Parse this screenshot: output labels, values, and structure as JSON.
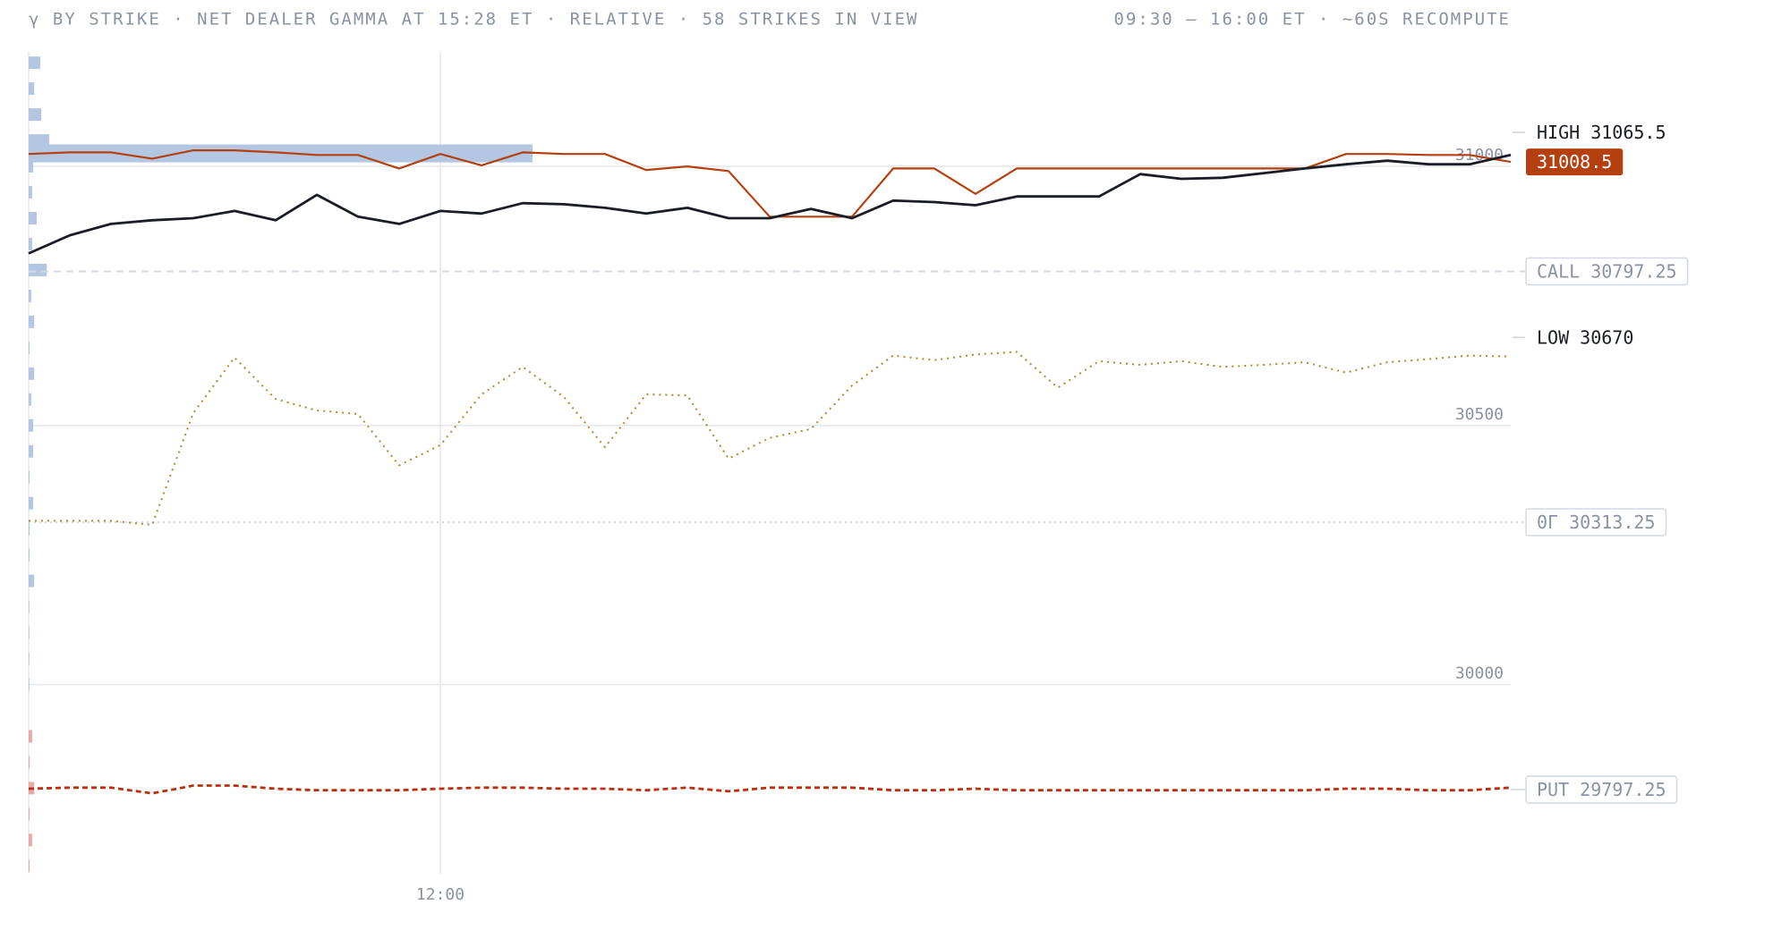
{
  "chart_data": {
    "type": "line",
    "title": "γ BY STRIKE · NET DEALER GAMMA AT 15:28 ET · RELATIVE · 58 STRIKES IN VIEW",
    "subtitle": "09:30 – 16:00 ET · ~60S RECOMPUTE",
    "x": [
      "10:40",
      "10:48",
      "10:56",
      "11:04",
      "11:12",
      "11:20",
      "11:28",
      "11:36",
      "11:44",
      "11:52",
      "12:00",
      "12:08",
      "12:16",
      "12:24",
      "12:32",
      "12:40",
      "12:48",
      "12:56",
      "13:04",
      "13:12",
      "13:20",
      "13:28",
      "13:36",
      "13:44",
      "13:52",
      "14:00",
      "14:08",
      "14:16",
      "14:24",
      "14:32",
      "14:40",
      "14:48",
      "14:56",
      "15:04",
      "15:12",
      "15:20",
      "15:28"
    ],
    "xlim": [
      "10:40",
      "15:28"
    ],
    "xticks": [
      "12:00"
    ],
    "ylim": [
      29635,
      31221
    ],
    "yticks": [
      30000,
      30500,
      31000
    ],
    "grid": true,
    "series": [
      {
        "color": "#b5400f",
        "style": "solid",
        "width": 2.2,
        "values": [
          31024,
          31027,
          31027,
          31015,
          31031,
          31031,
          31027,
          31022,
          31022,
          30996,
          31024,
          31002,
          31027,
          31024,
          31024,
          30993,
          31000,
          30991,
          30903,
          30903,
          30903,
          30996,
          30996,
          30947,
          30996,
          30996,
          30996,
          30996,
          30996,
          30996,
          30996,
          30996,
          31024,
          31024,
          31022,
          31022,
          31008.5
        ]
      },
      {
        "color": "#1a1d26",
        "style": "solid",
        "width": 2.8,
        "values": [
          30832,
          30867,
          30889,
          30896,
          30900,
          30914,
          30896,
          30945,
          30903,
          30889,
          30914,
          30909,
          30929,
          30927,
          30920,
          30909,
          30920,
          30900,
          30900,
          30918,
          30900,
          30934,
          30931,
          30925,
          30942,
          30942,
          30942,
          30985,
          30976,
          30978,
          30987,
          30996,
          31004,
          31011,
          31004,
          31004,
          31022
        ]
      },
      {
        "color": "#b8862a",
        "style": "dotted",
        "width": 2,
        "values": [
          30316,
          30316,
          30316,
          30308,
          30524,
          30631,
          30551,
          30529,
          30522,
          30423,
          30462,
          30560,
          30613,
          30555,
          30458,
          30560,
          30558,
          30436,
          30476,
          30493,
          30577,
          30635,
          30626,
          30637,
          30642,
          30573,
          30624,
          30617,
          30624,
          30613,
          30617,
          30622,
          30602,
          30622,
          30628,
          30635,
          30633
        ]
      },
      {
        "color": "#b8300f",
        "style": "dashed",
        "width": 2.8,
        "values": [
          29799,
          29801,
          29801,
          29790,
          29805,
          29805,
          29799,
          29796,
          29796,
          29796,
          29799,
          29801,
          29801,
          29799,
          29799,
          29796,
          29801,
          29794,
          29801,
          29801,
          29801,
          29796,
          29796,
          29799,
          29796,
          29796,
          29796,
          29796,
          29796,
          29796,
          29796,
          29796,
          29799,
          29799,
          29796,
          29796,
          29801
        ]
      }
    ],
    "gamma_bars": {
      "positive_color": "#b3c6e2",
      "negative_color": "#e8a9a9",
      "strikes": [
        31200,
        31150,
        31100,
        31050,
        31025,
        31000,
        30950,
        30900,
        30850,
        30800,
        30750,
        30700,
        30650,
        30600,
        30550,
        30500,
        30450,
        30400,
        30350,
        30300,
        30250,
        30200,
        30150,
        30100,
        30050,
        30000,
        29900,
        29850,
        29800,
        29750,
        29700,
        29650
      ],
      "values": [
        0.023,
        0.011,
        0.025,
        0.041,
        1,
        0.009,
        0.007,
        0.016,
        0.007,
        0.036,
        0.005,
        0.011,
        0.002,
        0.011,
        0.005,
        0.009,
        0.009,
        0.002,
        0.009,
        0.002,
        0.002,
        0.011,
        0.001,
        0.001,
        0.001,
        0.001,
        -0.007,
        -0.002,
        -0.011,
        -0.002,
        -0.007,
        -0.002
      ]
    },
    "levels": [
      {
        "name": "HIGH",
        "value": 31065.5,
        "style": "tick",
        "color": "#1a1d26"
      },
      {
        "value": 31008.5,
        "style": "badge",
        "color": "#b5400f"
      },
      {
        "name": "CALL",
        "value": 30797.25,
        "style": "box",
        "line": "dashed",
        "color": "#8a93a3"
      },
      {
        "name": "LOW",
        "value": 30670,
        "style": "tick",
        "color": "#1a1d26"
      },
      {
        "name": "0Γ",
        "value": 30313.25,
        "style": "box",
        "line": "dotted",
        "color": "#8a93a3"
      },
      {
        "name": "PUT",
        "value": 29797.25,
        "style": "box",
        "color": "#8a93a3"
      }
    ]
  }
}
